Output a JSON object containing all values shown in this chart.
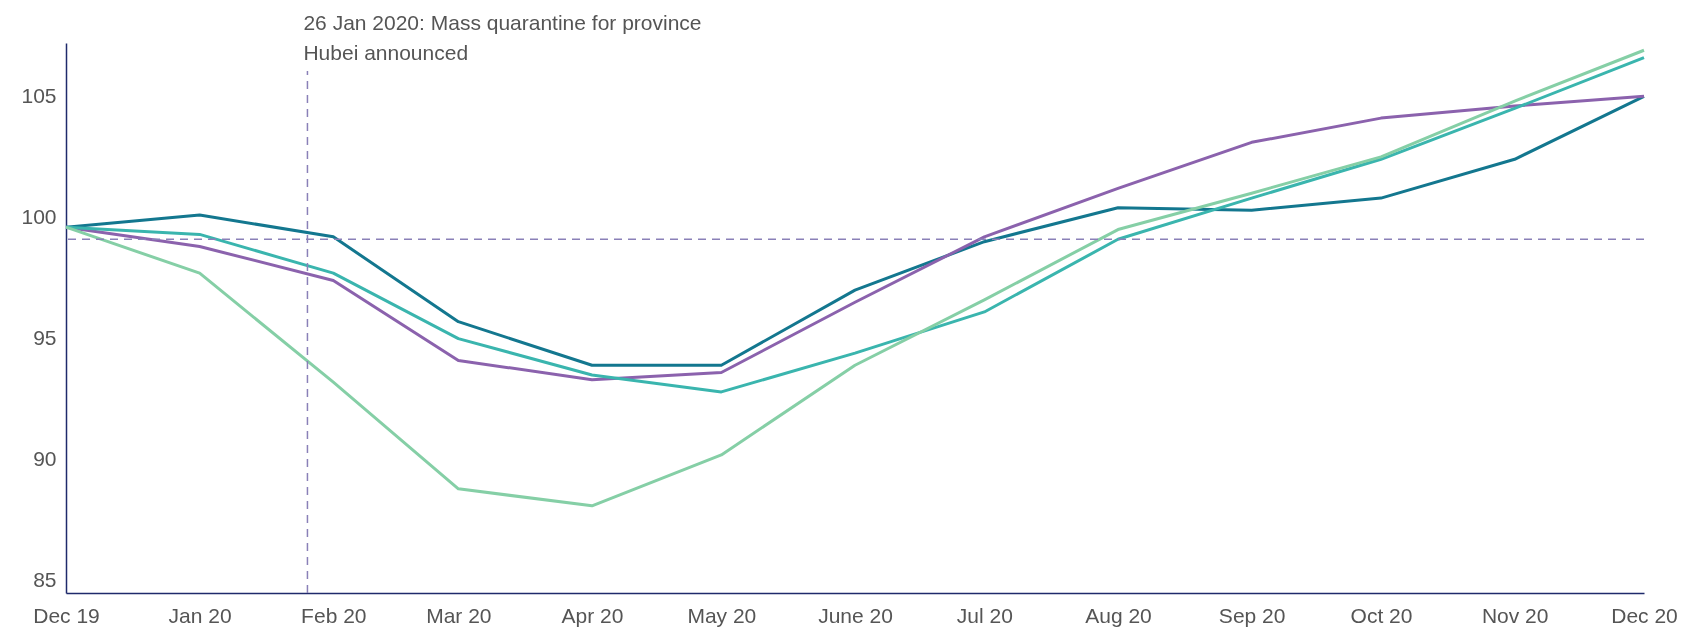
{
  "chart_data": {
    "type": "line",
    "x": [
      "2019-12",
      "2020-01",
      "2020-02",
      "2020-03",
      "2020-04",
      "2020-05",
      "2020-06",
      "2020-07",
      "2020-08",
      "2020-09",
      "2020-10",
      "2020-11",
      "2020-12"
    ],
    "series": [
      {
        "color": "#13778f",
        "values": [
          99.6,
          100.1,
          99.2,
          95.7,
          93.9,
          93.9,
          97.0,
          99.0,
          100.4,
          100.3,
          100.8,
          102.4,
          105.0
        ]
      },
      {
        "color": "#8b62ad",
        "values": [
          99.6,
          98.8,
          97.4,
          94.1,
          93.3,
          93.6,
          96.5,
          99.2,
          101.2,
          103.1,
          104.1,
          104.6,
          105.0
        ]
      },
      {
        "color": "#3ab5ae",
        "values": [
          99.6,
          99.3,
          97.7,
          95.0,
          93.5,
          92.8,
          94.4,
          96.1,
          99.1,
          100.8,
          102.4,
          104.5,
          106.6
        ]
      },
      {
        "color": "#85cfa6",
        "values": [
          99.6,
          97.7,
          93.2,
          88.8,
          88.1,
          90.2,
          93.9,
          96.6,
          99.5,
          101.0,
          102.5,
          104.8,
          106.9
        ]
      }
    ],
    "xlim": [
      "2019-12",
      "2020-12"
    ],
    "xticks": [
      {
        "value": "2019-12",
        "label": "Dec 19"
      },
      {
        "value": "2020-01",
        "label": "Jan 20"
      },
      {
        "value": "2020-02",
        "label": "Feb 20"
      },
      {
        "value": "2020-03",
        "label": "Mar 20"
      },
      {
        "value": "2020-04",
        "label": "Apr 20"
      },
      {
        "value": "2020-05",
        "label": "May 20"
      },
      {
        "value": "2020-06",
        "label": "June 20"
      },
      {
        "value": "2020-07",
        "label": "Jul 20"
      },
      {
        "value": "2020-08",
        "label": "Aug 20"
      },
      {
        "value": "2020-09",
        "label": "Sep 20"
      },
      {
        "value": "2020-10",
        "label": "Oct 20"
      },
      {
        "value": "2020-11",
        "label": "Nov 20"
      },
      {
        "value": "2020-12",
        "label": "Dec 20"
      }
    ],
    "ylim": [
      84.5,
      107.2
    ],
    "yticks": [
      85,
      90,
      95,
      100,
      105
    ],
    "ref_lines": [
      {
        "axis": "x",
        "value": "2020-01-26",
        "label": "26 Jan 2020: Mass quarantine for province\nHubei announced",
        "color": "#8a80b8",
        "line_style": "dashed"
      },
      {
        "axis": "y",
        "value": 99.1,
        "color": "#8a80b8",
        "line_style": "dashed"
      }
    ],
    "grid": false,
    "marker": "none",
    "line_style": "solid"
  }
}
